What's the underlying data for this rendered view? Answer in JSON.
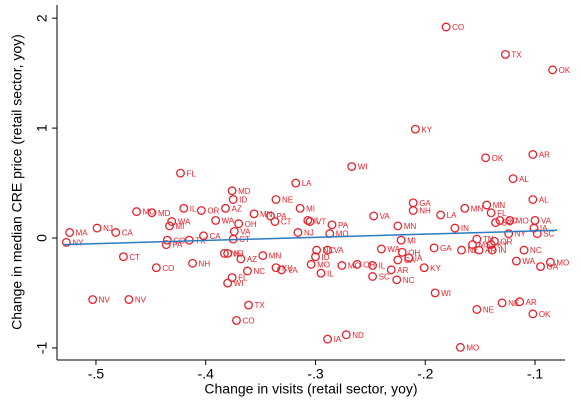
{
  "chart_data": {
    "type": "scatter",
    "x_label": "Change in visits (retail sector, yoy)",
    "y_label": "Change in median CRE price (retail sector, yoy)",
    "xlim": [
      -0.5355,
      -0.0727
    ],
    "ylim": [
      -1.11,
      2.12
    ],
    "xticks": [
      {
        "value": -0.5,
        "label": "-.5"
      },
      {
        "value": -0.4,
        "label": "-.4"
      },
      {
        "value": -0.3,
        "label": "-.3"
      },
      {
        "value": -0.2,
        "label": "-.2"
      },
      {
        "value": -0.1,
        "label": "-.1"
      }
    ],
    "yticks": [
      -1,
      0,
      1,
      2
    ],
    "color": "#e8212b",
    "x": [
      -0.181,
      -0.127,
      -0.084,
      -0.209,
      -0.102,
      -0.145,
      -0.12,
      -0.423,
      -0.267,
      -0.318,
      -0.376,
      -0.375,
      -0.336,
      -0.102,
      -0.211,
      -0.144,
      -0.314,
      -0.211,
      -0.382,
      -0.404,
      -0.463,
      -0.449,
      -0.42,
      -0.247,
      -0.186,
      -0.136,
      -0.164,
      -0.341,
      -0.337,
      -0.356,
      -0.433,
      -0.431,
      -0.307,
      -0.37,
      -0.305,
      -0.225,
      -0.285,
      -0.14,
      -0.391,
      -0.499,
      -0.482,
      -0.524,
      -0.527,
      -0.316,
      -0.287,
      -0.402,
      -0.374,
      -0.375,
      -0.222,
      -0.173,
      -0.124,
      -0.098,
      -0.1,
      -0.157,
      -0.153,
      -0.132,
      -0.123,
      -0.101,
      -0.137,
      -0.14,
      -0.435,
      -0.436,
      -0.415,
      -0.221,
      -0.38,
      -0.383,
      -0.24,
      -0.289,
      -0.299,
      -0.3,
      -0.192,
      -0.139,
      -0.151,
      -0.167,
      -0.11,
      -0.117,
      -0.086,
      -0.095,
      -0.412,
      -0.475,
      -0.445,
      -0.348,
      -0.304,
      -0.368,
      -0.336,
      -0.331,
      -0.362,
      -0.376,
      -0.38,
      -0.295,
      -0.262,
      -0.248,
      -0.276,
      -0.248,
      -0.231,
      -0.226,
      -0.201,
      -0.215,
      -0.225,
      -0.503,
      -0.47,
      -0.361,
      -0.372,
      -0.191,
      -0.153,
      -0.13,
      -0.114,
      -0.102,
      -0.289,
      -0.272,
      -0.168
    ],
    "values": [
      1.92,
      1.67,
      1.53,
      0.99,
      0.76,
      0.73,
      0.54,
      0.59,
      0.65,
      0.5,
      0.43,
      0.35,
      0.35,
      0.35,
      0.32,
      0.3,
      0.27,
      0.25,
      0.27,
      0.25,
      0.24,
      0.23,
      0.27,
      0.2,
      0.21,
      0.14,
      0.27,
      0.2,
      0.15,
      0.22,
      0.11,
      0.15,
      0.16,
      0.13,
      0.15,
      0.11,
      0.12,
      0.23,
      0.16,
      0.09,
      0.05,
      0.05,
      -0.04,
      0.05,
      0.04,
      0.02,
      0.06,
      -0.01,
      -0.02,
      0.09,
      0.04,
      0.04,
      0.16,
      -0.06,
      -0.01,
      0.16,
      0.16,
      0.09,
      -0.03,
      -0.06,
      -0.02,
      -0.06,
      -0.02,
      -0.13,
      -0.14,
      -0.14,
      -0.1,
      -0.11,
      -0.11,
      -0.17,
      -0.09,
      -0.11,
      -0.11,
      -0.11,
      -0.11,
      -0.21,
      -0.22,
      -0.26,
      -0.23,
      -0.17,
      -0.27,
      -0.16,
      -0.24,
      -0.19,
      -0.27,
      -0.29,
      -0.3,
      -0.36,
      -0.41,
      -0.32,
      -0.24,
      -0.25,
      -0.25,
      -0.35,
      -0.29,
      -0.38,
      -0.27,
      -0.18,
      -0.2,
      -0.56,
      -0.56,
      -0.61,
      -0.75,
      -0.5,
      -0.65,
      -0.59,
      -0.58,
      -0.69,
      -0.92,
      -0.88,
      -0.995
    ],
    "point_labels": [
      "CO",
      "TX",
      "OK",
      "KY",
      "AR",
      "OK",
      "AL",
      "FL",
      "WI",
      "LA",
      "MD",
      "ID",
      "NE",
      "AL",
      "GA",
      "MN",
      "MI",
      "NH",
      "AZ",
      "OR",
      "MO",
      "MD",
      "IL",
      "VA",
      "LA",
      "SC",
      "MN",
      "PA",
      "CT",
      "MN",
      "MI",
      "WA",
      "IL",
      "OH",
      "VT",
      "MN",
      "PA",
      "FL",
      "WA",
      "NJ",
      "CA",
      "MA",
      "NY",
      "NJ",
      "MO",
      "CA",
      "VA",
      "CT",
      "MI",
      "IN",
      "NY",
      "SC",
      "VA",
      "MS",
      "TN",
      "SC",
      "MO",
      "IA",
      "OR",
      "KY",
      "CO",
      "PA",
      "TX",
      "OH",
      "NJ",
      "NE",
      "WA",
      "VA",
      "NC",
      "ID",
      "GA",
      "IN",
      "AR",
      "NE",
      "NC",
      "WA",
      "MO",
      "GA",
      "NH",
      "CT",
      "CO",
      "MN",
      "MO",
      "AZ",
      "KY",
      "VA",
      "NC",
      "FL",
      "WI",
      "IL",
      "OH",
      "IL",
      "MO",
      "SC",
      "AR",
      "NC",
      "KY",
      "IA",
      "GA",
      "NV",
      "NV",
      "TX",
      "CO",
      "WI",
      "NE",
      "NE",
      "AR",
      "OK",
      "IA",
      "ND",
      "MO"
    ],
    "fit": {
      "x": [
        -0.53,
        -0.08
      ],
      "y": [
        -0.06,
        0.07
      ],
      "color": "#2a7bbf"
    }
  }
}
